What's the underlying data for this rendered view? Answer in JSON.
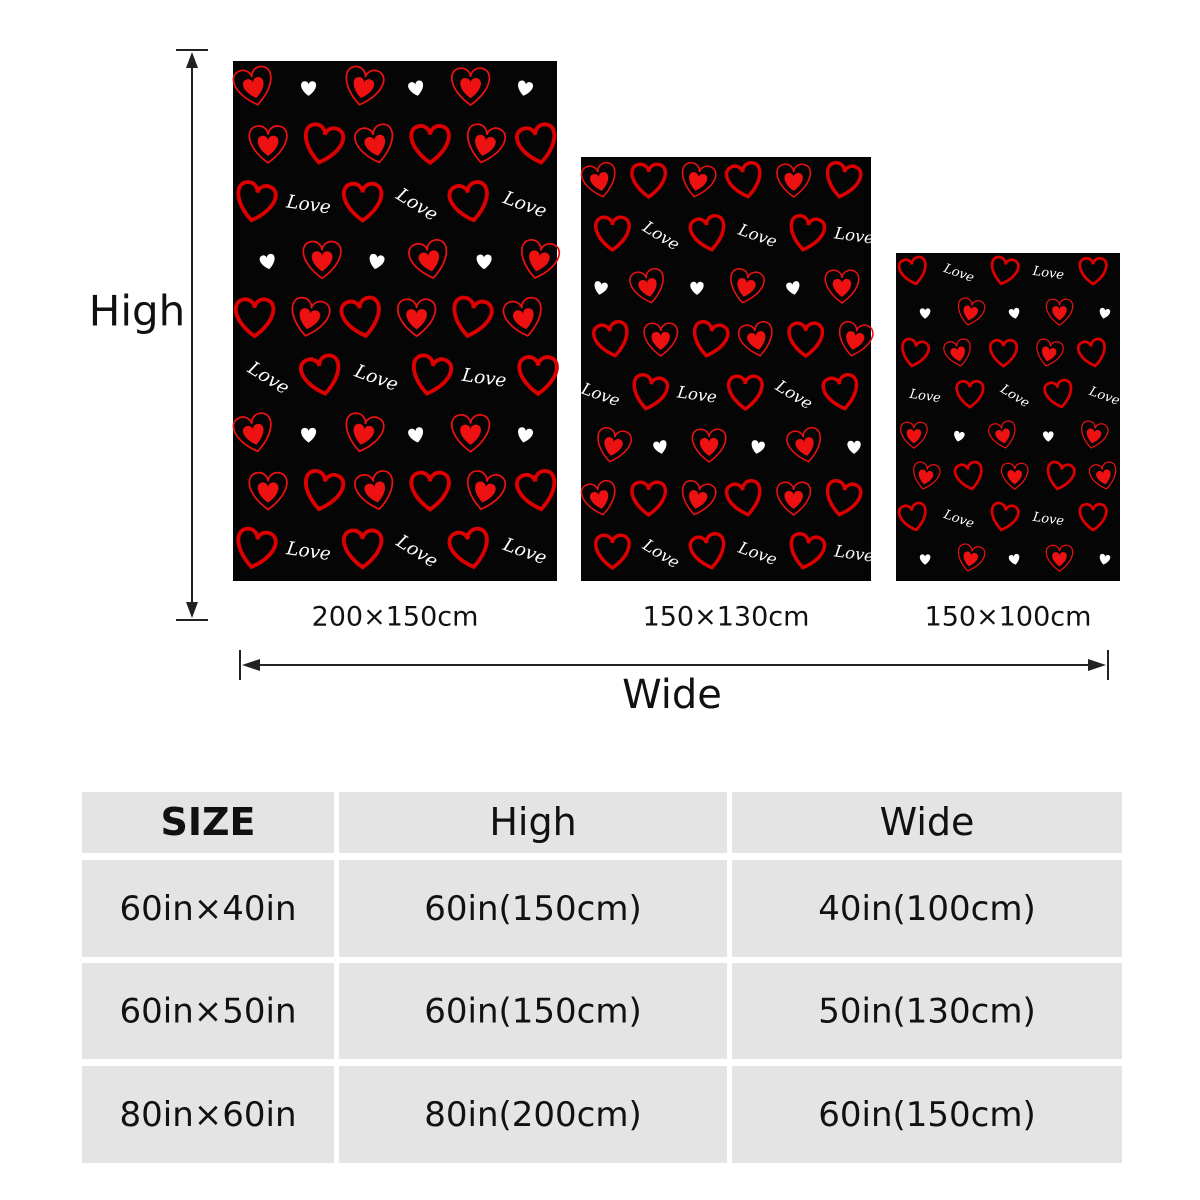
{
  "diagram": {
    "height_label": "High",
    "width_label": "Wide",
    "blankets": [
      "200×150cm",
      "150×130cm",
      "150×100cm"
    ],
    "pattern_word": "Love"
  },
  "table": {
    "header": [
      "SIZE",
      "High",
      "Wide"
    ],
    "rows": [
      [
        "60in×40in",
        "60in(150cm)",
        "40in(100cm)"
      ],
      [
        "60in×50in",
        "60in(150cm)",
        "50in(130cm)"
      ],
      [
        "80in×60in",
        "80in(200cm)",
        "60in(150cm)"
      ]
    ]
  }
}
